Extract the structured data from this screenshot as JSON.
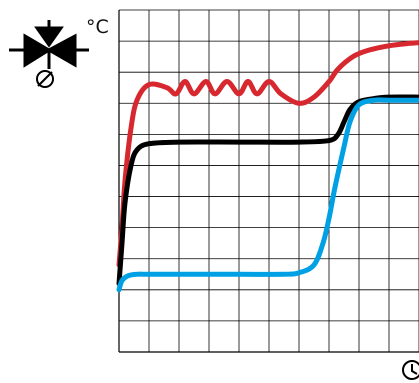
{
  "unit_label": "°C",
  "symbol": {
    "icon": "three-way-valve-icon",
    "actuator": "solenoid-icon",
    "color": "#000000"
  },
  "corner_icon": "time-icon",
  "grid": true,
  "chart_data": {
    "type": "line",
    "title": "",
    "xlabel": "",
    "ylabel": "°C",
    "xlim": [
      0,
      10
    ],
    "ylim": [
      0,
      11
    ],
    "grid": true,
    "series": [
      {
        "color": "#d7282f",
        "x": [
          0,
          0.1,
          0.2,
          0.4,
          0.6,
          1.0,
          1.6,
          1.9,
          2.2,
          2.5,
          2.9,
          3.2,
          3.6,
          4.0,
          4.3,
          4.6,
          5.0,
          5.4,
          6.0,
          6.5,
          7.0,
          7.3,
          7.8,
          8.3,
          9.0,
          9.6,
          10.0
        ],
        "values": [
          2.8,
          4.0,
          5.5,
          7.2,
          8.1,
          8.6,
          8.5,
          8.3,
          8.7,
          8.3,
          8.7,
          8.3,
          8.7,
          8.3,
          8.7,
          8.3,
          8.7,
          8.3,
          8.0,
          8.2,
          8.7,
          9.1,
          9.5,
          9.7,
          9.85,
          9.92,
          9.95
        ]
      },
      {
        "color": "#000000",
        "x": [
          0,
          0.1,
          0.2,
          0.4,
          0.6,
          1.0,
          2.0,
          4.0,
          6.0,
          7.0,
          7.3,
          7.5,
          7.7,
          8.0,
          8.5,
          9.0,
          10.0
        ],
        "values": [
          2.2,
          3.5,
          4.8,
          6.0,
          6.5,
          6.7,
          6.75,
          6.75,
          6.75,
          6.8,
          7.0,
          7.4,
          7.8,
          8.05,
          8.15,
          8.2,
          8.2
        ]
      },
      {
        "color": "#00a1e4",
        "x": [
          0,
          0.1,
          0.3,
          0.6,
          1.0,
          2.0,
          4.0,
          5.5,
          6.0,
          6.5,
          6.8,
          7.0,
          7.2,
          7.5,
          7.7,
          8.0,
          8.5,
          9.0,
          10.0
        ],
        "values": [
          2.0,
          2.3,
          2.45,
          2.5,
          2.5,
          2.5,
          2.5,
          2.5,
          2.55,
          2.8,
          3.5,
          4.3,
          5.3,
          6.6,
          7.4,
          7.95,
          8.1,
          8.1,
          8.1
        ]
      }
    ]
  }
}
